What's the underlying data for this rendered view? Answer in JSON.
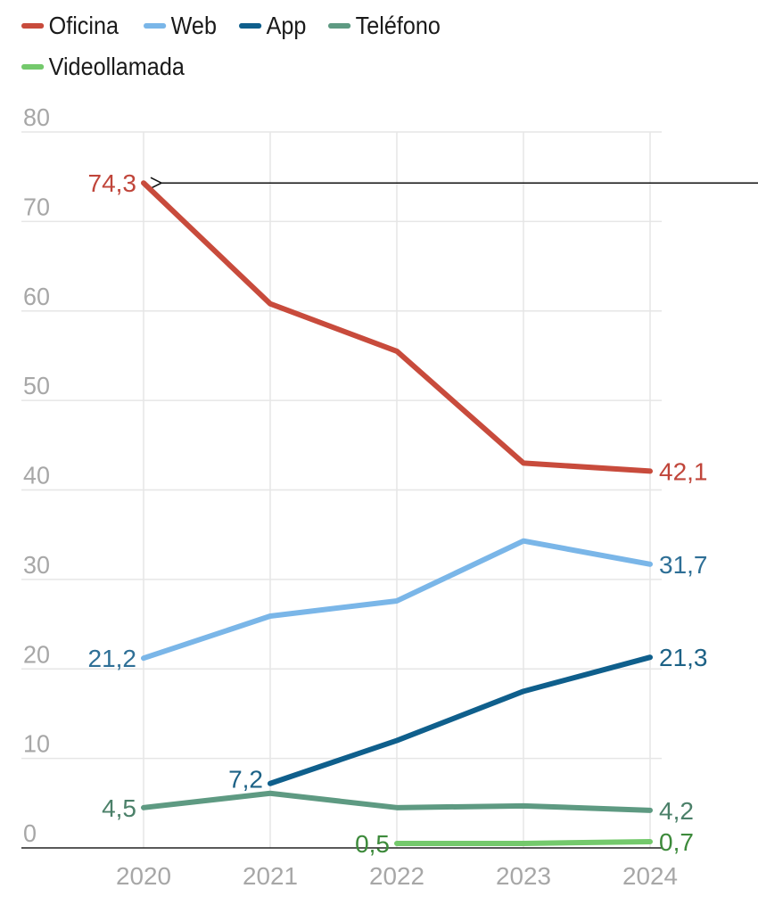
{
  "chart_data": {
    "type": "line",
    "title": "",
    "xlabel": "",
    "ylabel": "",
    "x": [
      "2020",
      "2021",
      "2022",
      "2023",
      "2024"
    ],
    "ylim": [
      0,
      80
    ],
    "yticks": [
      "0",
      "10",
      "20",
      "30",
      "40",
      "50",
      "60",
      "70",
      "80"
    ],
    "grid": true,
    "legend_position": "top-left",
    "series": [
      {
        "name": "Oficina",
        "color": "#c84b3c",
        "label_color": "#c0453a",
        "values": [
          74.3,
          60.8,
          55.5,
          43.0,
          42.1
        ],
        "labels": {
          "start": "74,3",
          "end": "42,1"
        }
      },
      {
        "name": "Web",
        "color": "#7ab6e8",
        "label_color": "#2e6f96",
        "values": [
          21.2,
          25.9,
          27.6,
          34.3,
          31.7
        ],
        "labels": {
          "start": "21,2",
          "end": "31,7"
        }
      },
      {
        "name": "App",
        "color": "#0f5f8c",
        "label_color": "#1d6286",
        "values": [
          null,
          7.2,
          12.0,
          17.5,
          21.3
        ],
        "labels": {
          "start": "7,2",
          "end": "21,3"
        }
      },
      {
        "name": "Teléfono",
        "color": "#5e9a82",
        "label_color": "#4b8069",
        "values": [
          4.5,
          6.1,
          4.5,
          4.7,
          4.2
        ],
        "labels": {
          "start": "4,5",
          "end": "4,2"
        }
      },
      {
        "name": "Videollamada",
        "color": "#74c96c",
        "label_color": "#3d8a3b",
        "values": [
          null,
          null,
          0.5,
          0.5,
          0.7
        ],
        "labels": {
          "start": "0,5",
          "end": "0,7"
        }
      }
    ],
    "annotations": [
      {
        "type": "arrow",
        "target_series": "Oficina",
        "target_x": "2020",
        "target_value": 74.3,
        "direction": "left"
      }
    ]
  }
}
